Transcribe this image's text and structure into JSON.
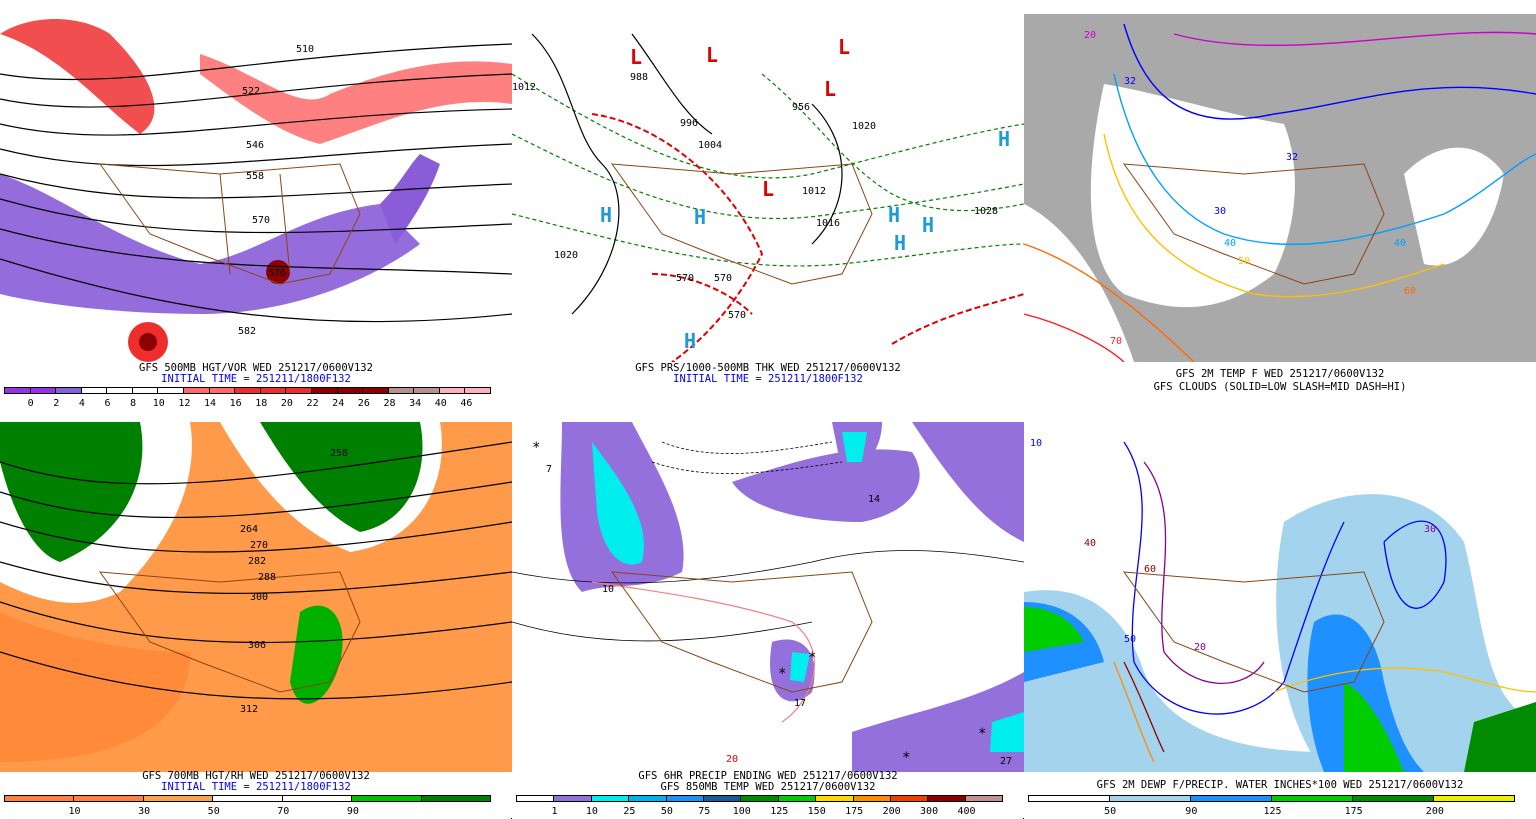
{
  "panels": [
    {
      "caption1": "GFS 500MB HGT/VOR WED 251217/0600V132",
      "caption2": "INITIAL TIME = 251211/1800F132",
      "colorbar": {
        "colors": [
          "#9932e6",
          "#9932e6",
          "#8064d8",
          "#ffffff",
          "#ffffff",
          "#ffffff",
          "#ffffff",
          "#ff6a6a",
          "#ff6a6a",
          "#ee2d2d",
          "#ee2d2d",
          "#ee2d2d",
          "#8b0000",
          "#8b0000",
          "#8b0000",
          "#bc8f8f",
          "#bc8f8f",
          "#ffb0c0",
          "#ffb0c0"
        ],
        "labels": [
          "0",
          "2",
          "4",
          "6",
          "8",
          "10",
          "12",
          "14",
          "16",
          "18",
          "20",
          "22",
          "24",
          "26",
          "28",
          "34",
          "40",
          "46"
        ]
      },
      "contour_labels": [
        "510",
        "522",
        "546",
        "558",
        "570",
        "576",
        "582"
      ]
    },
    {
      "caption1": "GFS PRS/1000-500MB THK WED 251217/0600V132",
      "caption2": "INITIAL TIME = 251211/1800F132",
      "contour_labels": [
        "988",
        "996",
        "1004",
        "956",
        "1012",
        "1016",
        "1020",
        "1020",
        "1028",
        "570",
        "570",
        "570",
        "1012"
      ]
    },
    {
      "caption1": "GFS 2M TEMP F WED 251217/0600V132",
      "caption2": "GFS CLOUDS (SOLID=LOW SLASH=MID DASH=HI)",
      "contour_labels": [
        "32",
        "32",
        "40",
        "50",
        "60",
        "70",
        "20",
        "30",
        "40"
      ]
    },
    {
      "caption1": "GFS 700MB HGT/RH WED 251217/0600V132",
      "caption2": "INITIAL TIME = 251211/1800F132",
      "colorbar": {
        "colors": [
          "#ff8040",
          "#ff8040",
          "#ffa050",
          "#ffffff",
          "#ffffff",
          "#00c000",
          "#008000"
        ],
        "labels": [
          "10",
          "30",
          "50",
          "70",
          "90"
        ]
      },
      "contour_labels": [
        "258",
        "264",
        "270",
        "282",
        "288",
        "300",
        "306",
        "312"
      ]
    },
    {
      "caption1": "GFS 6HR PRECIP ENDING WED 251217/0600V132",
      "caption2": "GFS 850MB TEMP WED 251217/0600V132",
      "colorbar": {
        "colors": [
          "#ffffff",
          "#9370db",
          "#00eeee",
          "#00b2ee",
          "#1e90ff",
          "#1c5a9a",
          "#008b00",
          "#00cd00",
          "#ffd700",
          "#ff8c00",
          "#ee4000",
          "#8b0000",
          "#c49090"
        ],
        "labels": [
          "1",
          "10",
          "25",
          "50",
          "75",
          "100",
          "125",
          "150",
          "175",
          "200",
          "300",
          "400"
        ]
      },
      "contour_labels": [
        "7",
        "10",
        "14",
        "17",
        "20",
        "27"
      ]
    },
    {
      "caption1": "GFS 2M DEWP F/PRECIP. WATER INCHES*100 WED 251217/0600V132",
      "colorbar": {
        "colors": [
          "#ffffff",
          "#a4d3ee",
          "#1e90ff",
          "#00cd00",
          "#008b00",
          "#eeee00"
        ],
        "labels": [
          "50",
          "90",
          "125",
          "175",
          "200"
        ]
      },
      "contour_labels": [
        "10",
        "20",
        "30",
        "40",
        "50",
        "60"
      ]
    }
  ],
  "map_symbols": {
    "high": "H",
    "low": "L",
    "snow": "*"
  },
  "colors": {
    "border": "#8b4513",
    "contour": "#000000",
    "initial_time": "#0000ff"
  }
}
